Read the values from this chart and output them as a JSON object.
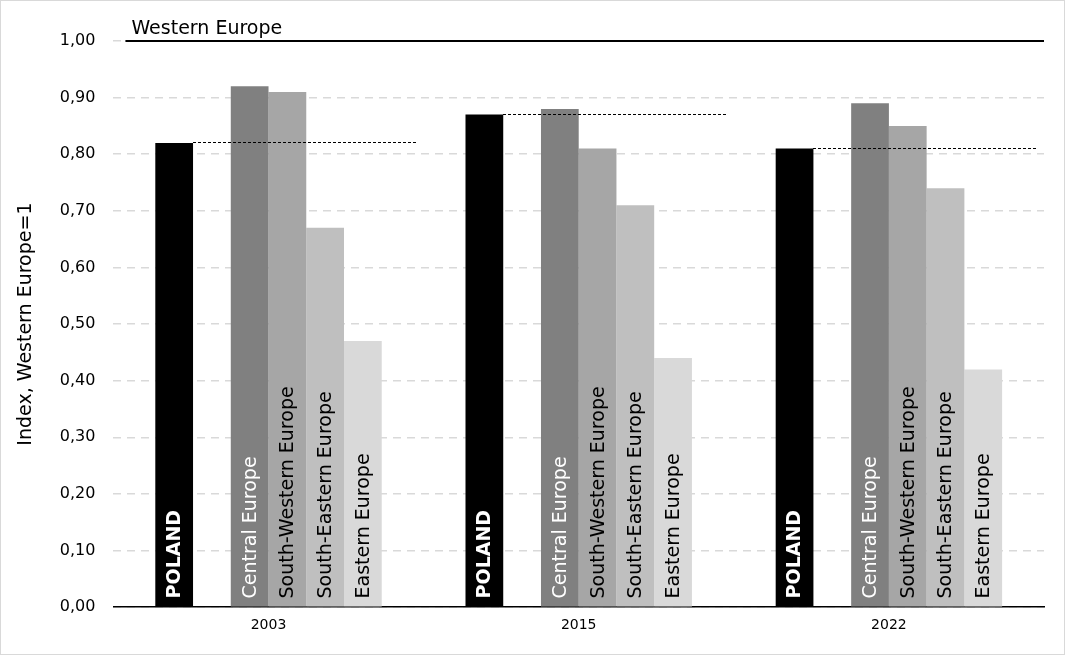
{
  "chart_data": {
    "type": "bar",
    "ylabel": "Index, Western Europe=1",
    "categories": [
      "2003",
      "2015",
      "2022"
    ],
    "ylim": [
      0,
      1
    ],
    "yticks": [
      {
        "value": 0,
        "label": "0,00"
      },
      {
        "value": 0.1,
        "label": "0,10"
      },
      {
        "value": 0.2,
        "label": "0,20"
      },
      {
        "value": 0.3,
        "label": "0,30"
      },
      {
        "value": 0.4,
        "label": "0,40"
      },
      {
        "value": 0.5,
        "label": "0,50"
      },
      {
        "value": 0.6,
        "label": "0,60"
      },
      {
        "value": 0.7,
        "label": "0,70"
      },
      {
        "value": 0.8,
        "label": "0,80"
      },
      {
        "value": 0.9,
        "label": "0,90"
      },
      {
        "value": 1,
        "label": "1,00"
      }
    ],
    "grid": "y",
    "legend": false,
    "series": [
      {
        "name": "POLAND",
        "color": "#000000",
        "values": [
          0.82,
          0.87,
          0.81
        ]
      },
      {
        "name": "Central Europe",
        "color": "#808080",
        "values": [
          0.92,
          0.88,
          0.89
        ]
      },
      {
        "name": "South-Western Europe",
        "color": "#a6a6a6",
        "values": [
          0.91,
          0.81,
          0.85
        ]
      },
      {
        "name": "South-Eastern Europe",
        "color": "#bfbfbf",
        "values": [
          0.67,
          0.71,
          0.74
        ]
      },
      {
        "name": "Eastern Europe",
        "color": "#d9d9d9",
        "values": [
          0.47,
          0.44,
          0.42
        ]
      }
    ],
    "ref_lines": [
      {
        "axis": "y",
        "value": 1,
        "label": "Western Europe",
        "color": "#000000"
      }
    ]
  }
}
